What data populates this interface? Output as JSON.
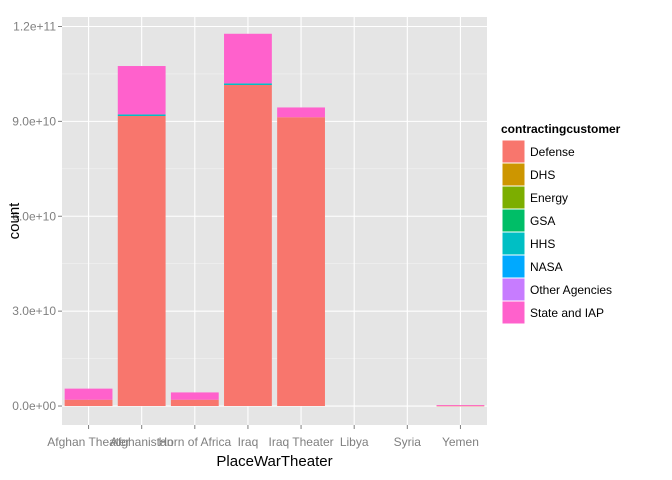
{
  "chart_data": {
    "type": "bar",
    "stacked": true,
    "xlabel": "PlaceWarTheater",
    "ylabel": "count",
    "categories": [
      "Afghan Theater",
      "Afghanistan",
      "Horn of Africa",
      "Iraq",
      "Iraq Theater",
      "Libya",
      "Syria",
      "Yemen"
    ],
    "ylim": [
      -6000000000,
      123000000000
    ],
    "yticks": [
      0,
      30000000000,
      60000000000,
      90000000000,
      120000000000
    ],
    "ytick_labels": [
      "0.0e+00",
      "3.0e+10",
      "6.0e+10",
      "9.0e+10",
      "1.2e+11"
    ],
    "grid": true,
    "legend": {
      "title": "contractingcustomer",
      "position": "right"
    },
    "series": [
      {
        "name": "Defense",
        "color": "#F8766D",
        "values": [
          2000000000,
          91700000000,
          2000000000,
          101500000000,
          91300000000,
          0,
          0,
          150000000
        ]
      },
      {
        "name": "DHS",
        "color": "#CD9600",
        "values": [
          0,
          0,
          0,
          0,
          0,
          0,
          0,
          0
        ]
      },
      {
        "name": "Energy",
        "color": "#7CAE00",
        "values": [
          0,
          0,
          0,
          0,
          0,
          0,
          0,
          0
        ]
      },
      {
        "name": "GSA",
        "color": "#00BE67",
        "values": [
          0,
          0,
          0,
          0,
          0,
          0,
          0,
          0
        ]
      },
      {
        "name": "HHS",
        "color": "#00BFC4",
        "values": [
          0,
          500000000,
          0,
          500000000,
          0,
          0,
          0,
          0
        ]
      },
      {
        "name": "NASA",
        "color": "#00A9FF",
        "values": [
          0,
          0,
          0,
          0,
          0,
          0,
          0,
          0
        ]
      },
      {
        "name": "Other Agencies",
        "color": "#C77CFF",
        "values": [
          0,
          0,
          0,
          0,
          0,
          0,
          0,
          0
        ]
      },
      {
        "name": "State and IAP",
        "color": "#FF61CC",
        "values": [
          3500000000,
          15300000000,
          2300000000,
          15700000000,
          3100000000,
          0,
          0,
          150000000
        ]
      }
    ]
  },
  "colors": {
    "panel_background": "#E5E5E5",
    "grid_major": "#FFFFFF",
    "grid_minor": "#F2F2F2"
  }
}
